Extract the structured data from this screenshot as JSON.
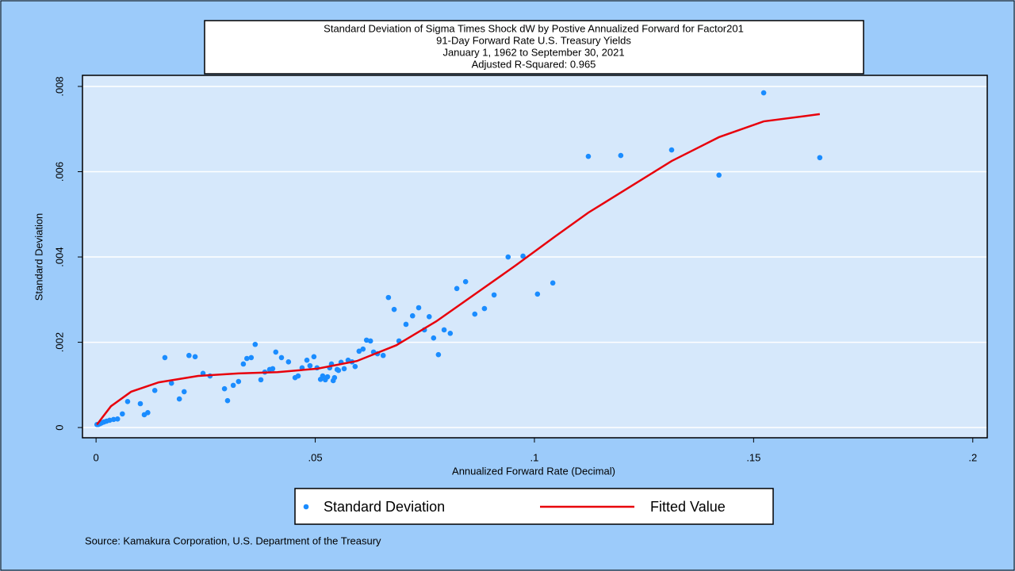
{
  "chart_data": {
    "type": "scatter",
    "title": "Standard Deviation of Sigma Times Shock dW by Postive Annualized Forward for Factor201",
    "subtitles": [
      "91-Day Forward Rate U.S. Treasury Yields",
      "January 1, 1962 to September 30, 2021",
      "Adjusted R-Squared: 0.965"
    ],
    "x_label": "Annualized Forward Rate (Decimal)",
    "y_label": "Standard Deviation",
    "source": "Source: Kamakura Corporation, U.S. Department of the Treasury",
    "xlim": [
      -0.0031,
      0.2033
    ],
    "ylim": [
      -0.00024,
      0.00826
    ],
    "xticks": [
      0,
      {
        "value": 0.05,
        "label": ".05"
      },
      {
        "value": 0.1,
        "label": ".1"
      },
      {
        "value": 0.15,
        "label": ".15"
      },
      {
        "value": 0.2,
        "label": ".2"
      }
    ],
    "yticks": [
      0,
      {
        "value": 0.002,
        "label": ".002"
      },
      {
        "value": 0.004,
        "label": ".004"
      },
      {
        "value": 0.006,
        "label": ".006"
      },
      {
        "value": 0.008,
        "label": ".008"
      }
    ],
    "grid": true,
    "series": [
      {
        "name": "Standard Deviation",
        "type": "scatter",
        "color": "#1a8cff",
        "x": [
          0.0002,
          0.0005,
          0.0009,
          0.0013,
          0.0018,
          0.0024,
          0.0031,
          0.004,
          0.0049,
          0.006,
          0.0072,
          0.0101,
          0.011,
          0.0118,
          0.0134,
          0.0157,
          0.0172,
          0.019,
          0.0201,
          0.0212,
          0.0226,
          0.0244,
          0.026,
          0.0293,
          0.03,
          0.0313,
          0.0325,
          0.0336,
          0.0344,
          0.0354,
          0.0363,
          0.0376,
          0.0385,
          0.0396,
          0.0403,
          0.041,
          0.0423,
          0.0439,
          0.0454,
          0.0461,
          0.047,
          0.0481,
          0.0488,
          0.0497,
          0.0504,
          0.0512,
          0.0517,
          0.0523,
          0.0528,
          0.0533,
          0.0537,
          0.0541,
          0.0544,
          0.055,
          0.0553,
          0.0559,
          0.0566,
          0.0575,
          0.0584,
          0.0591,
          0.06,
          0.0609,
          0.0617,
          0.0626,
          0.0633,
          0.0642,
          0.0655,
          0.0667,
          0.068,
          0.0691,
          0.0707,
          0.0722,
          0.0736,
          0.0749,
          0.076,
          0.077,
          0.0781,
          0.0794,
          0.0808,
          0.0823,
          0.0843,
          0.0864,
          0.0886,
          0.0908,
          0.094,
          0.0974,
          0.1007,
          0.1042,
          0.1123,
          0.1197,
          0.1313,
          0.1421,
          0.1523,
          0.1651
        ],
        "values": [
          7e-05,
          7e-05,
          9e-05,
          0.00011,
          0.00013,
          0.00015,
          0.00017,
          0.00019,
          0.0002,
          0.00032,
          0.00061,
          0.00056,
          0.0003,
          0.00035,
          0.00087,
          0.00164,
          0.00104,
          0.00067,
          0.00084,
          0.00169,
          0.00166,
          0.00127,
          0.00121,
          0.00091,
          0.00063,
          0.00099,
          0.00108,
          0.00149,
          0.00162,
          0.00164,
          0.00195,
          0.00112,
          0.0013,
          0.00136,
          0.00138,
          0.00177,
          0.00164,
          0.00154,
          0.00117,
          0.00121,
          0.0014,
          0.00158,
          0.00145,
          0.00166,
          0.0014,
          0.00113,
          0.00121,
          0.00112,
          0.00119,
          0.0014,
          0.00149,
          0.0011,
          0.00117,
          0.00136,
          0.00134,
          0.00153,
          0.00138,
          0.00158,
          0.00154,
          0.00143,
          0.00179,
          0.00184,
          0.00205,
          0.00203,
          0.00177,
          0.00173,
          0.00169,
          0.00305,
          0.00277,
          0.00203,
          0.00242,
          0.00262,
          0.00281,
          0.00229,
          0.0026,
          0.0021,
          0.00171,
          0.00229,
          0.00221,
          0.00326,
          0.00342,
          0.00266,
          0.00279,
          0.00311,
          0.004,
          0.00402,
          0.00313,
          0.00339,
          0.00636,
          0.00638,
          0.00651,
          0.00592,
          0.00785,
          0.00633
        ]
      },
      {
        "name": "Fitted Value",
        "type": "line",
        "color": "#e8000b",
        "x": [
          0.0002,
          0.0034,
          0.008,
          0.0143,
          0.0233,
          0.0324,
          0.0414,
          0.0505,
          0.0595,
          0.0685,
          0.0776,
          0.0866,
          0.0957,
          0.1047,
          0.1123,
          0.1197,
          0.1313,
          0.1421,
          0.1523,
          0.1651
        ],
        "values": [
          7e-05,
          0.0005,
          0.00084,
          0.00106,
          0.00121,
          0.00127,
          0.0013,
          0.00138,
          0.00156,
          0.00193,
          0.00249,
          0.00314,
          0.0038,
          0.00448,
          0.00504,
          0.00551,
          0.00625,
          0.00681,
          0.00718,
          0.00735
        ]
      }
    ]
  }
}
